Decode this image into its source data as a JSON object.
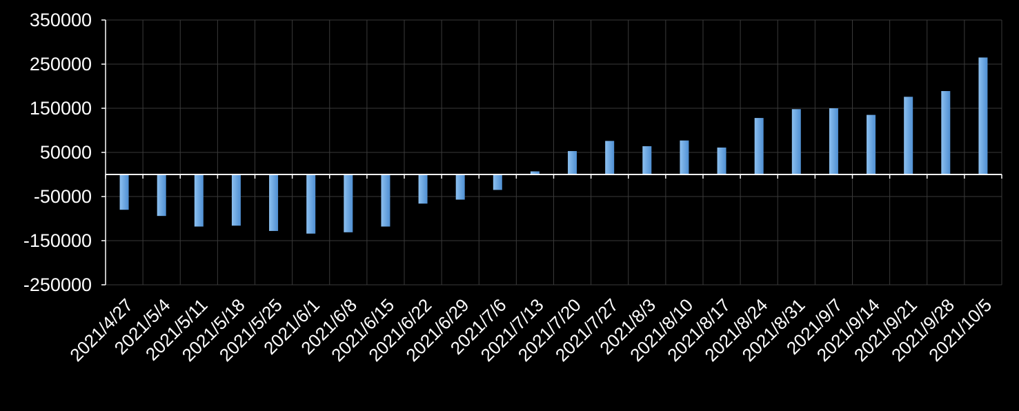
{
  "chart_data": {
    "type": "bar",
    "title": "",
    "xlabel": "",
    "ylabel": "",
    "ylim": [
      -250000,
      350000
    ],
    "yticks": [
      350000,
      250000,
      150000,
      50000,
      -50000,
      -150000,
      -250000
    ],
    "ytick_labels": [
      "350000",
      "250000",
      "150000",
      "50000",
      "-50000",
      "-150000",
      "-250000"
    ],
    "categories": [
      "2021/4/27",
      "2021/5/4",
      "2021/5/11",
      "2021/5/18",
      "2021/5/25",
      "2021/6/1",
      "2021/6/8",
      "2021/6/15",
      "2021/6/22",
      "2021/6/29",
      "2021/7/6",
      "2021/7/13",
      "2021/7/20",
      "2021/7/27",
      "2021/8/3",
      "2021/8/10",
      "2021/8/17",
      "2021/8/24",
      "2021/8/31",
      "2021/9/7",
      "2021/9/14",
      "2021/9/21",
      "2021/9/28",
      "2021/10/5"
    ],
    "series": [
      {
        "values": [
          -80000,
          -94000,
          -118000,
          -116000,
          -128000,
          -134000,
          -131000,
          -118000,
          -66000,
          -57000,
          -35000,
          7000,
          53000,
          76000,
          64000,
          77000,
          61000,
          128000,
          148000,
          150000,
          135000,
          176000,
          189000,
          265000
        ]
      }
    ],
    "grid": true,
    "legend": "none",
    "colors": {
      "background": "#000000",
      "grid": "#3a3a3a",
      "axis": "#ffffff",
      "bar_light": "#8cc0f0",
      "bar_dark": "#4f8fd2"
    }
  }
}
